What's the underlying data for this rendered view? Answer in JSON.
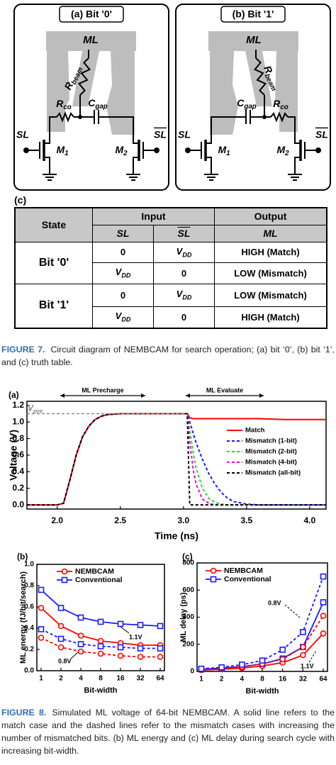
{
  "figure7": {
    "panels": [
      {
        "title": "(a) Bit '0'",
        "ml": "ML",
        "r_beam": [
          "R",
          "beam"
        ],
        "r_co": [
          "R",
          "co"
        ],
        "c_gap": [
          "C",
          "gap"
        ],
        "sl": "SL",
        "sl_bar": "SL",
        "m1": [
          "M",
          "1"
        ],
        "m2": [
          "M",
          "2"
        ]
      },
      {
        "title": "(b) Bit '1'",
        "ml": "ML",
        "r_beam": [
          "R",
          "beam"
        ],
        "r_co": [
          "R",
          "co"
        ],
        "c_gap": [
          "C",
          "gap"
        ],
        "sl": "SL",
        "sl_bar": "SL",
        "m1": [
          "M",
          "1"
        ],
        "m2": [
          "M",
          "2"
        ]
      }
    ],
    "table": {
      "label": "(c)",
      "header": {
        "state": "State",
        "input": "Input",
        "output": "Output"
      },
      "subheader": {
        "sl": "SL",
        "sl_bar": "SL",
        "ml": "ML"
      },
      "groups": [
        {
          "state": "Bit '0'",
          "rows": [
            {
              "sl": 0,
              "sl_bar": [
                "V",
                "DD"
              ],
              "ml": "HIGH (Match)"
            },
            {
              "sl": [
                "V",
                "DD"
              ],
              "sl_bar": 0,
              "ml": "LOW (Mismatch)"
            }
          ]
        },
        {
          "state": "Bit '1'",
          "rows": [
            {
              "sl": 0,
              "sl_bar": [
                "V",
                "DD"
              ],
              "ml": "LOW (Mismatch)"
            },
            {
              "sl": [
                "V",
                "DD"
              ],
              "sl_bar": 0,
              "ml": "HIGH (Match)"
            }
          ]
        }
      ]
    },
    "caption": {
      "label": "FIGURE 7.",
      "text": "Circuit diagram of NEMBCAM for search operation; (a) bit ‘0’, (b) bit ‘1’, and (c) truth table."
    }
  },
  "chart_data": [
    {
      "type": "line",
      "panel_label": "(a)",
      "xlabel": "Time (ns)",
      "ylabel": "Voltage (V)",
      "x": [
        1.76,
        2.0,
        2.05,
        2.1,
        2.15,
        2.2,
        2.25,
        2.3,
        2.35,
        2.4,
        2.5,
        2.6,
        2.8,
        3.0,
        3.03,
        3.05,
        3.08,
        3.1,
        3.15,
        3.2,
        3.25,
        3.3,
        3.35,
        3.4,
        3.5,
        3.6,
        3.8,
        4.13
      ],
      "xlim": [
        1.76,
        4.13
      ],
      "xticks": [
        {
          "value": 2,
          "label": "2.0"
        },
        {
          "value": 2.5,
          "label": "2.5"
        },
        {
          "value": 3,
          "label": "3.0"
        },
        {
          "value": 3.5,
          "label": "3.5"
        },
        {
          "value": 4,
          "label": "4.0"
        }
      ],
      "ylim": [
        -0.05,
        1.25
      ],
      "yticks": [
        {
          "value": 0,
          "label": "0.0"
        },
        {
          "value": 0.2,
          "label": "0.2"
        },
        {
          "value": 0.4,
          "label": "0.4"
        },
        {
          "value": 0.6,
          "label": "0.6"
        },
        {
          "value": 0.8,
          "label": "0.8"
        },
        {
          "value": 1,
          "label": "1.0"
        },
        {
          "value": 1.2,
          "label": "1.2"
        }
      ],
      "legend": "upper right",
      "annotations": [
        "ML Precharge",
        "ML Evaluate"
      ],
      "reference": {
        "label": [
          "V",
          "pre"
        ],
        "value": 1.1
      },
      "series": [
        {
          "name": "Match",
          "color": "#ff0000",
          "dash": false,
          "values": [
            0,
            0,
            0.02,
            0.3,
            0.6,
            0.82,
            0.95,
            1.03,
            1.07,
            1.09,
            1.1,
            1.1,
            1.1,
            1.1,
            1.1,
            1.05,
            1.04,
            1.04,
            1.04,
            1.04,
            1.04,
            1.04,
            1.04,
            1.04,
            1.04,
            1.04,
            1.03,
            1.03
          ]
        },
        {
          "name": "Mismatch (1-bit)",
          "color": "#1a1aff",
          "dash": true,
          "values": [
            0,
            0,
            0.02,
            0.3,
            0.6,
            0.82,
            0.95,
            1.03,
            1.07,
            1.09,
            1.1,
            1.1,
            1.1,
            1.1,
            1.1,
            1.0,
            0.85,
            0.75,
            0.55,
            0.38,
            0.25,
            0.15,
            0.08,
            0.04,
            0.01,
            0,
            0,
            0
          ]
        },
        {
          "name": "Mismatch (2-bit)",
          "color": "#22dd22",
          "dash": true,
          "values": [
            0,
            0,
            0.02,
            0.3,
            0.6,
            0.82,
            0.95,
            1.03,
            1.07,
            1.09,
            1.1,
            1.1,
            1.1,
            1.1,
            1.1,
            0.9,
            0.6,
            0.45,
            0.2,
            0.08,
            0.03,
            0.01,
            0,
            0,
            0,
            0,
            0,
            0
          ]
        },
        {
          "name": "Mismatch (4-bit)",
          "color": "#ee00ee",
          "dash": true,
          "values": [
            0,
            0,
            0.02,
            0.3,
            0.6,
            0.82,
            0.95,
            1.03,
            1.07,
            1.09,
            1.1,
            1.1,
            1.1,
            1.1,
            1.1,
            0.75,
            0.4,
            0.25,
            0.07,
            0.02,
            0,
            0,
            0,
            0,
            0,
            0,
            0,
            0
          ]
        },
        {
          "name": "Mismatch (all-bit)",
          "color": "#000000",
          "dash": true,
          "values": [
            0,
            0,
            0.02,
            0.3,
            0.6,
            0.82,
            0.95,
            1.03,
            1.07,
            1.09,
            1.1,
            1.1,
            1.1,
            1.1,
            1.1,
            0,
            0,
            0,
            0,
            0,
            0,
            0,
            0,
            0,
            0,
            0,
            0,
            0
          ]
        }
      ]
    },
    {
      "type": "line",
      "panel_label": "(b)",
      "xlabel": "Bit-width",
      "ylabel": "ML energy (fJ/bit/search)",
      "categories": [
        "1",
        "2",
        "4",
        "8",
        "16",
        "32",
        "64"
      ],
      "ylim": [
        0,
        1
      ],
      "yticks": [
        {
          "value": 0,
          "label": "0.0"
        },
        {
          "value": 0.2,
          "label": "0.2"
        },
        {
          "value": 0.4,
          "label": "0.4"
        },
        {
          "value": 0.6,
          "label": "0.6"
        },
        {
          "value": 0.8,
          "label": "0.8"
        },
        {
          "value": 1,
          "label": "1.0"
        }
      ],
      "legend": "upper left",
      "annotations": [
        "1.1V",
        "0.8V"
      ],
      "series": [
        {
          "name": "NEMBCAM",
          "color": "#ff0000",
          "dash": false,
          "marker": "circle",
          "values": [
            0.59,
            0.42,
            0.33,
            0.28,
            0.26,
            0.24,
            0.24
          ]
        },
        {
          "name": "Conventional",
          "color": "#1a1aff",
          "dash": false,
          "marker": "square",
          "values": [
            0.76,
            0.59,
            0.5,
            0.46,
            0.44,
            0.43,
            0.42
          ]
        },
        {
          "color": "#ff0000",
          "dash": true,
          "marker": "circle",
          "values": [
            0.31,
            0.22,
            0.18,
            0.16,
            0.14,
            0.13,
            0.13
          ]
        },
        {
          "color": "#1a1aff",
          "dash": true,
          "marker": "square",
          "values": [
            0.39,
            0.3,
            0.25,
            0.23,
            0.22,
            0.21,
            0.21
          ]
        }
      ]
    },
    {
      "type": "line",
      "panel_label": "(c)",
      "xlabel": "Bit-width",
      "ylabel": "ML delay (ps)",
      "categories": [
        "1",
        "2",
        "4",
        "8",
        "16",
        "32",
        "64"
      ],
      "ylim": [
        0,
        800
      ],
      "yticks": [
        0,
        200,
        400,
        600,
        800
      ],
      "legend": "upper left",
      "annotations": [
        "0.8V",
        "1.1V"
      ],
      "series": [
        {
          "name": "NEMBCAM",
          "color": "#ff0000",
          "dash": false,
          "marker": "circle",
          "values": [
            10,
            15,
            25,
            40,
            65,
            120,
            280
          ]
        },
        {
          "name": "Conventional",
          "color": "#1a1aff",
          "dash": false,
          "marker": "square",
          "values": [
            15,
            25,
            35,
            55,
            95,
            180,
            510
          ]
        },
        {
          "color": "#ff0000",
          "dash": true,
          "marker": "circle",
          "values": [
            15,
            22,
            35,
            55,
            90,
            180,
            410
          ]
        },
        {
          "color": "#1a1aff",
          "dash": true,
          "marker": "square",
          "values": [
            20,
            30,
            50,
            80,
            160,
            290,
            700
          ]
        }
      ]
    }
  ],
  "figure8_caption": {
    "label": "FIGURE 8.",
    "text": "Simulated ML voltage of 64-bit NEMBCAM. A solid line refers to the match case and the dashed lines refer to the mismatch cases with increasing the number of mismatched bits. (b) ML energy and (c) ML delay during search cycle with increasing bit-width."
  }
}
